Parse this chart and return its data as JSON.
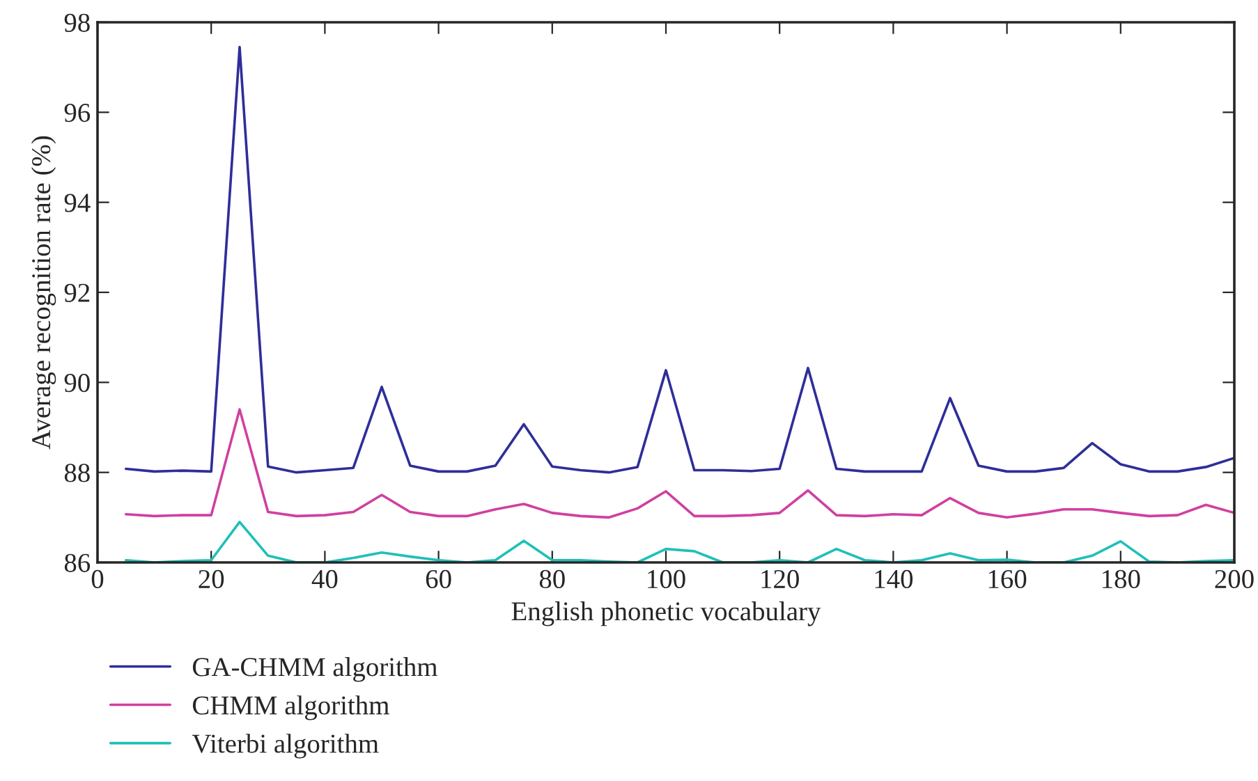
{
  "chart_data": {
    "type": "line",
    "xlabel": "English phonetic vocabulary",
    "ylabel": "Average recognition rate (%)",
    "x": [
      5,
      10,
      15,
      20,
      25,
      30,
      35,
      40,
      45,
      50,
      55,
      60,
      65,
      70,
      75,
      80,
      85,
      90,
      95,
      100,
      105,
      110,
      115,
      120,
      125,
      130,
      135,
      140,
      145,
      150,
      155,
      160,
      165,
      170,
      175,
      180,
      185,
      190,
      195,
      200
    ],
    "series": [
      {
        "name": "GA-CHMM algorithm",
        "color": "#2e2e9a",
        "values": [
          88.08,
          88.02,
          88.04,
          88.02,
          97.45,
          88.13,
          88.0,
          88.05,
          88.1,
          89.9,
          88.15,
          88.02,
          88.02,
          88.15,
          89.07,
          88.13,
          88.05,
          88.0,
          88.12,
          90.27,
          88.05,
          88.05,
          88.03,
          88.08,
          90.32,
          88.08,
          88.02,
          88.02,
          88.02,
          89.65,
          88.15,
          88.02,
          88.02,
          88.1,
          88.65,
          88.18,
          88.02,
          88.02,
          88.12,
          88.32
        ]
      },
      {
        "name": "CHMM algorithm",
        "color": "#d040a0",
        "values": [
          87.07,
          87.03,
          87.05,
          87.05,
          89.4,
          87.12,
          87.03,
          87.05,
          87.12,
          87.5,
          87.12,
          87.03,
          87.03,
          87.18,
          87.3,
          87.1,
          87.03,
          87.0,
          87.2,
          87.58,
          87.03,
          87.03,
          87.05,
          87.1,
          87.6,
          87.05,
          87.03,
          87.07,
          87.05,
          87.43,
          87.1,
          87.0,
          87.08,
          87.18,
          87.18,
          87.1,
          87.03,
          87.05,
          87.28,
          87.1
        ]
      },
      {
        "name": "Viterbi algorithm",
        "color": "#20c0b8",
        "values": [
          86.05,
          86.0,
          86.03,
          86.05,
          86.9,
          86.15,
          86.0,
          86.0,
          86.1,
          86.22,
          86.13,
          86.05,
          86.0,
          86.05,
          86.48,
          86.05,
          86.05,
          86.02,
          86.0,
          86.3,
          86.25,
          86.0,
          86.0,
          86.05,
          86.0,
          86.3,
          86.05,
          86.0,
          86.05,
          86.2,
          86.05,
          86.06,
          86.0,
          86.0,
          86.15,
          86.47,
          86.02,
          86.0,
          86.03,
          86.05
        ]
      }
    ],
    "xlim": [
      0,
      200
    ],
    "xticks": [
      0,
      20,
      40,
      60,
      80,
      100,
      120,
      140,
      160,
      180,
      200
    ],
    "ylim": [
      86,
      98
    ],
    "yticks": [
      86,
      88,
      90,
      92,
      94,
      96,
      98
    ],
    "grid": false,
    "legend": "bottom left",
    "line_style": "solid",
    "marker": "none"
  }
}
